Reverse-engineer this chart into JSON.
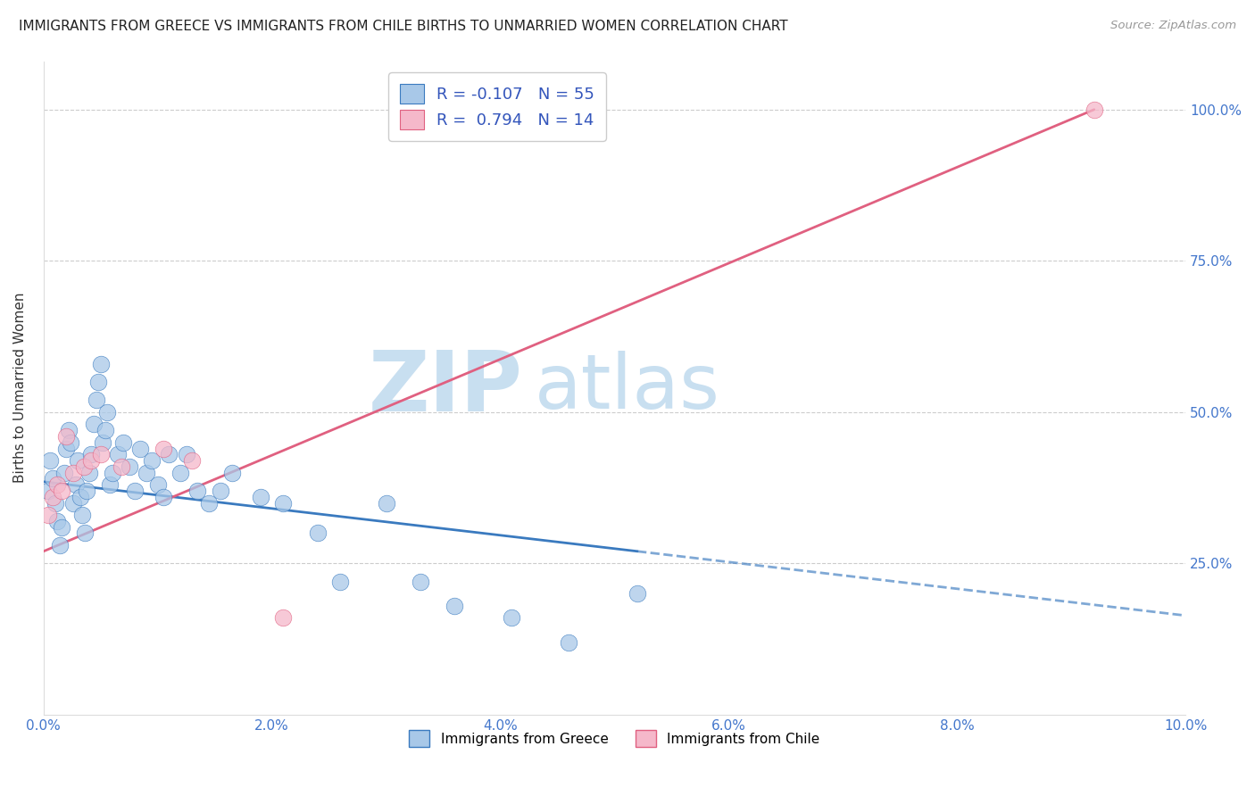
{
  "title": "IMMIGRANTS FROM GREECE VS IMMIGRANTS FROM CHILE BIRTHS TO UNMARRIED WOMEN CORRELATION CHART",
  "source": "Source: ZipAtlas.com",
  "ylabel": "Births to Unmarried Women",
  "x_tick_labels": [
    "0.0%",
    "2.0%",
    "4.0%",
    "6.0%",
    "8.0%",
    "10.0%"
  ],
  "x_tick_values": [
    0.0,
    2.0,
    4.0,
    6.0,
    8.0,
    10.0
  ],
  "y_tick_labels": [
    "25.0%",
    "50.0%",
    "75.0%",
    "100.0%"
  ],
  "y_tick_values": [
    25.0,
    50.0,
    75.0,
    100.0
  ],
  "xlim": [
    0.0,
    10.0
  ],
  "ylim": [
    0.0,
    108.0
  ],
  "legend_r_greece": "-0.107",
  "legend_n_greece": "55",
  "legend_r_chile": "0.794",
  "legend_n_chile": "14",
  "color_greece": "#a8c8e8",
  "color_chile": "#f5b8ca",
  "trendline_greece_color": "#3a7abf",
  "trendline_chile_color": "#e06080",
  "watermark_zip": "ZIP",
  "watermark_atlas": "atlas",
  "watermark_color_zip": "#c8dff0",
  "watermark_color_atlas": "#c8dff0",
  "greece_x": [
    0.04,
    0.06,
    0.08,
    0.1,
    0.12,
    0.14,
    0.16,
    0.18,
    0.2,
    0.22,
    0.24,
    0.26,
    0.28,
    0.3,
    0.32,
    0.34,
    0.36,
    0.38,
    0.4,
    0.42,
    0.44,
    0.46,
    0.48,
    0.5,
    0.52,
    0.54,
    0.56,
    0.58,
    0.6,
    0.65,
    0.7,
    0.75,
    0.8,
    0.85,
    0.9,
    0.95,
    1.0,
    1.05,
    1.1,
    1.2,
    1.25,
    1.35,
    1.45,
    1.55,
    1.65,
    1.9,
    2.1,
    2.4,
    2.6,
    3.0,
    3.3,
    3.6,
    4.1,
    4.6,
    5.2
  ],
  "greece_y": [
    37,
    42,
    39,
    35,
    32,
    28,
    31,
    40,
    44,
    47,
    45,
    35,
    38,
    42,
    36,
    33,
    30,
    37,
    40,
    43,
    48,
    52,
    55,
    58,
    45,
    47,
    50,
    38,
    40,
    43,
    45,
    41,
    37,
    44,
    40,
    42,
    38,
    36,
    43,
    40,
    43,
    37,
    35,
    37,
    40,
    36,
    35,
    30,
    22,
    35,
    22,
    18,
    16,
    12,
    20
  ],
  "chile_x": [
    0.04,
    0.08,
    0.12,
    0.16,
    0.2,
    0.26,
    0.35,
    0.42,
    0.5,
    0.68,
    1.05,
    1.3,
    2.1,
    9.2
  ],
  "chile_y": [
    33,
    36,
    38,
    37,
    46,
    40,
    41,
    42,
    43,
    41,
    44,
    42,
    16,
    100
  ],
  "greece_trendline_x0": 0.0,
  "greece_trendline_y0": 38.5,
  "greece_trendline_x1": 5.2,
  "greece_trendline_y1": 27.0,
  "greece_dash_x0": 5.2,
  "greece_dash_x1": 10.0,
  "chile_trendline_x0": 0.0,
  "chile_trendline_y0": 27.0,
  "chile_trendline_x1": 9.2,
  "chile_trendline_y1": 100.0
}
